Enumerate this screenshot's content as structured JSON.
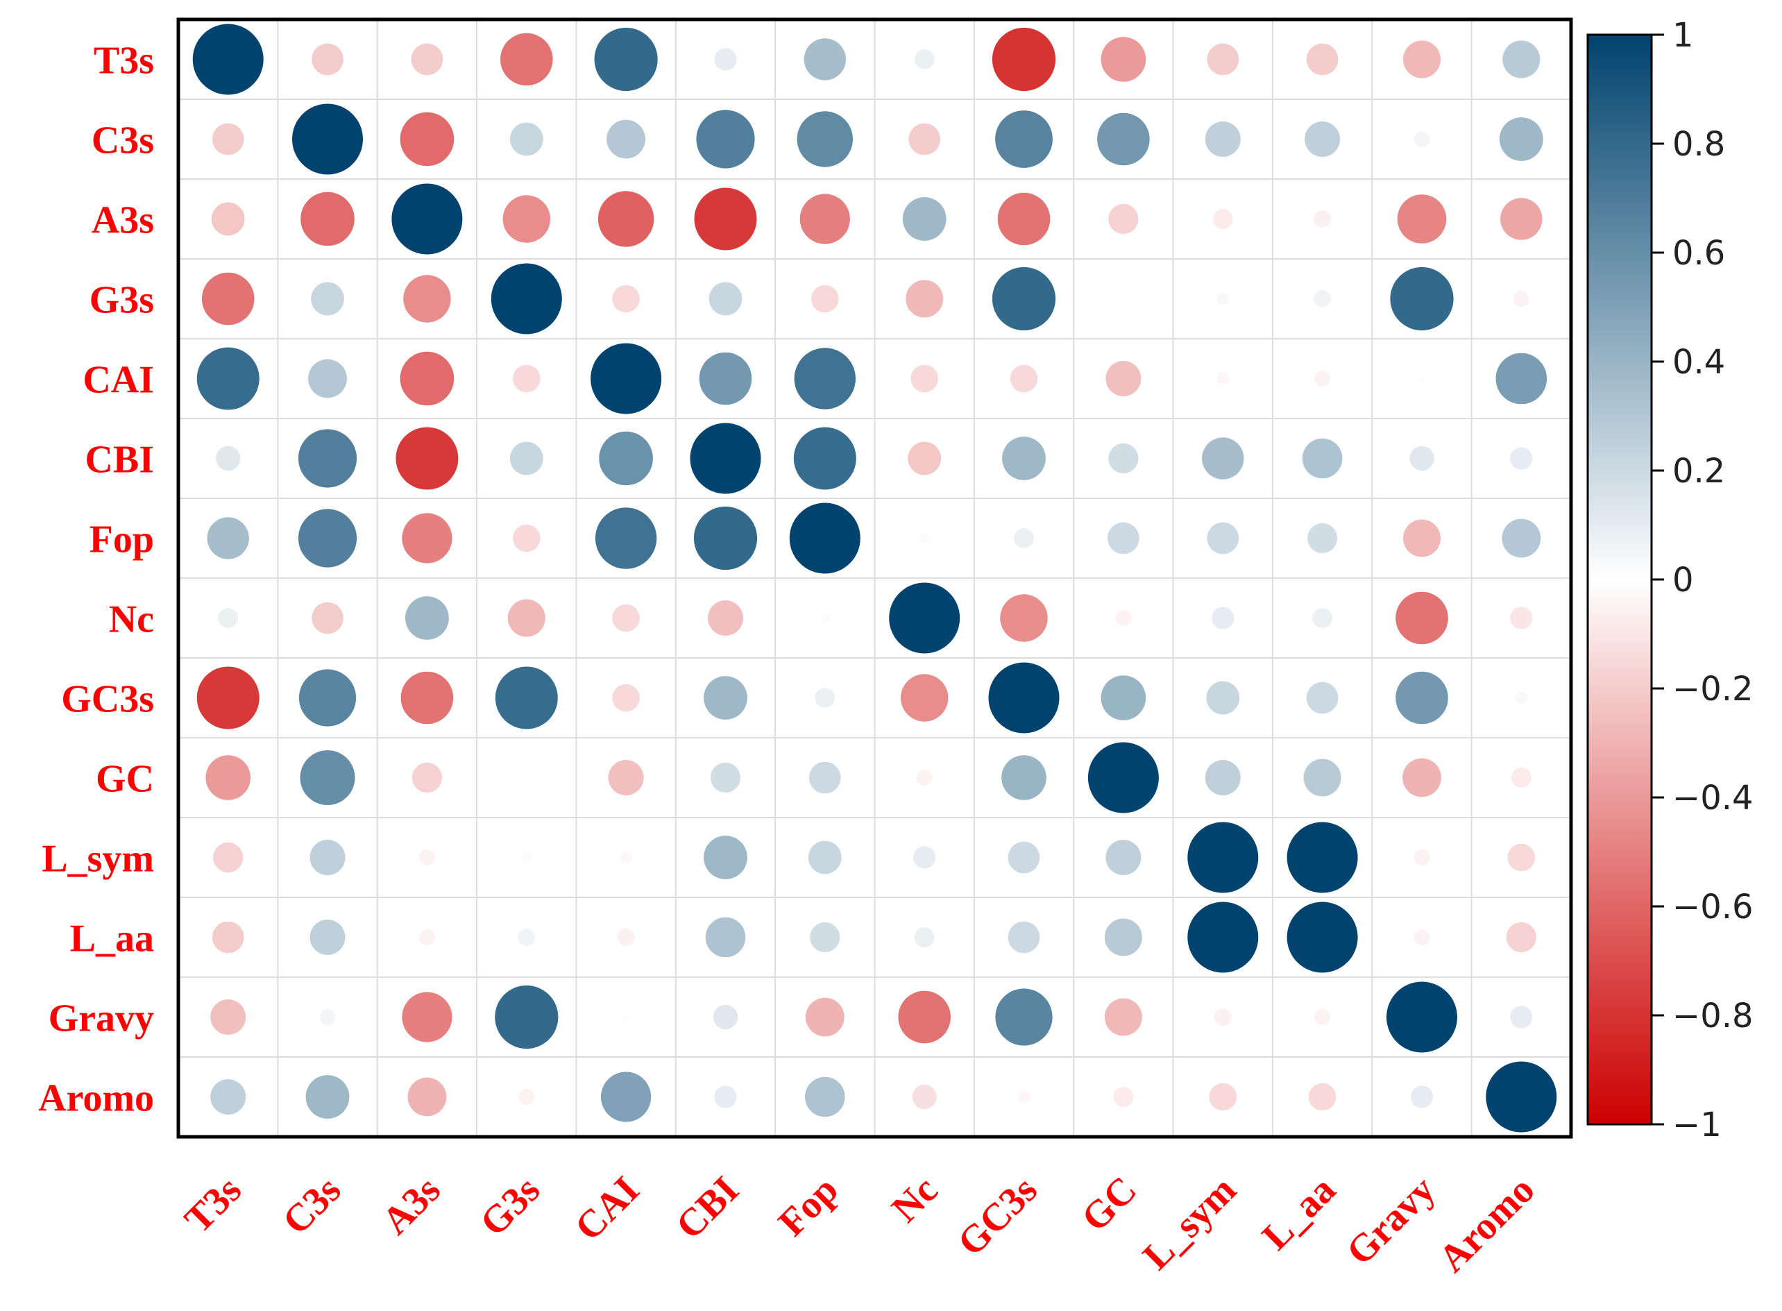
{
  "chart_data": {
    "type": "heatmap",
    "title": "",
    "variables": [
      "T3s",
      "C3s",
      "A3s",
      "G3s",
      "CAI",
      "CBI",
      "Fop",
      "Nc",
      "GC3s",
      "GC",
      "L_sym",
      "L_aa",
      "Gravy",
      "Aromo"
    ],
    "matrix": [
      [
        1.0,
        -0.2,
        -0.2,
        -0.55,
        0.8,
        0.1,
        0.35,
        0.08,
        -0.8,
        -0.4,
        -0.2,
        -0.2,
        -0.28,
        0.28
      ],
      [
        -0.2,
        1.0,
        -0.58,
        0.22,
        0.3,
        0.68,
        0.62,
        -0.2,
        0.66,
        0.55,
        0.25,
        0.25,
        0.05,
        0.38
      ],
      [
        -0.22,
        -0.58,
        1.0,
        -0.45,
        -0.62,
        -0.78,
        -0.5,
        0.38,
        -0.55,
        -0.18,
        -0.08,
        -0.06,
        -0.48,
        -0.35
      ],
      [
        -0.55,
        0.22,
        -0.45,
        1.0,
        -0.15,
        0.22,
        -0.15,
        -0.28,
        0.8,
        0.0,
        0.03,
        0.06,
        0.8,
        -0.05
      ],
      [
        0.78,
        0.3,
        -0.58,
        -0.15,
        1.0,
        0.55,
        0.75,
        -0.15,
        -0.15,
        -0.25,
        -0.03,
        -0.05,
        -0.01,
        0.52
      ],
      [
        0.12,
        0.68,
        -0.78,
        0.22,
        0.58,
        1.0,
        0.78,
        -0.22,
        0.38,
        0.18,
        0.35,
        0.32,
        0.12,
        0.1
      ],
      [
        0.35,
        0.68,
        -0.5,
        -0.15,
        0.75,
        0.8,
        1.0,
        0.02,
        0.08,
        0.2,
        0.2,
        0.18,
        -0.28,
        0.3
      ],
      [
        0.08,
        -0.2,
        0.38,
        -0.28,
        -0.15,
        -0.25,
        0.02,
        1.0,
        -0.45,
        -0.05,
        0.1,
        0.08,
        -0.55,
        -0.1
      ],
      [
        -0.78,
        0.65,
        -0.55,
        0.78,
        -0.15,
        0.38,
        0.08,
        -0.45,
        1.0,
        0.4,
        0.22,
        0.2,
        0.55,
        0.03
      ],
      [
        -0.4,
        0.6,
        -0.18,
        0.0,
        -0.25,
        0.18,
        0.2,
        -0.05,
        0.4,
        1.0,
        0.25,
        0.28,
        -0.3,
        -0.08
      ],
      [
        -0.18,
        0.25,
        -0.05,
        0.02,
        -0.03,
        0.38,
        0.22,
        0.1,
        0.2,
        0.25,
        1.0,
        1.0,
        -0.05,
        -0.15
      ],
      [
        -0.2,
        0.25,
        -0.05,
        0.06,
        -0.06,
        0.32,
        0.18,
        0.08,
        0.2,
        0.28,
        1.0,
        1.0,
        -0.05,
        -0.18
      ],
      [
        -0.25,
        0.05,
        -0.5,
        0.8,
        -0.01,
        0.12,
        -0.3,
        -0.55,
        0.65,
        -0.28,
        -0.06,
        -0.05,
        1.0,
        0.1
      ],
      [
        0.25,
        0.38,
        -0.3,
        -0.05,
        0.5,
        0.1,
        0.32,
        -0.12,
        -0.03,
        -0.08,
        -0.15,
        -0.15,
        0.1,
        1.0
      ]
    ],
    "colorbar": {
      "range": [
        -1,
        1
      ],
      "ticks": [
        1,
        0.8,
        0.6,
        0.4,
        0.2,
        0,
        -0.2,
        -0.4,
        -0.6,
        -0.8,
        -1
      ],
      "tick_labels": [
        "1",
        "0.8",
        "0.6",
        "0.4",
        "0.2",
        "0",
        "−0.2",
        "−0.4",
        "−0.6",
        "−0.8",
        "−1"
      ],
      "colors": {
        "neg": "#cc0000",
        "mid": "#ffffff",
        "pos": "#00436e"
      }
    },
    "label_color": "#ff0000",
    "grid_color": "#dddddd",
    "frame_color": "#000000"
  }
}
